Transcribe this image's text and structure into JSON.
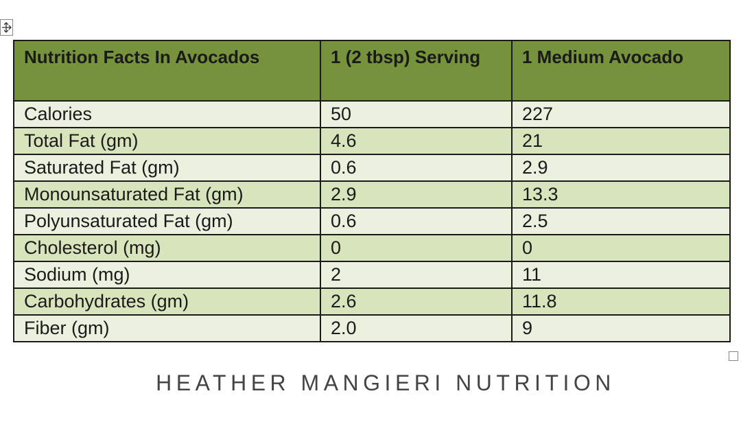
{
  "table": {
    "columns": [
      "Nutrition Facts In Avocados",
      "1 (2 tbsp) Serving",
      "1 Medium Avocado"
    ],
    "rows": [
      [
        "Calories",
        "50",
        "227"
      ],
      [
        "Total Fat (gm)",
        "4.6",
        "21"
      ],
      [
        "Saturated Fat (gm)",
        "0.6",
        "2.9"
      ],
      [
        "Monounsaturated Fat (gm)",
        "2.9",
        "13.3"
      ],
      [
        "Polyunsaturated Fat (gm)",
        "0.6",
        "2.5"
      ],
      [
        "Cholesterol (mg)",
        "0",
        "0"
      ],
      [
        "Sodium (mg)",
        "2",
        "11"
      ],
      [
        "Carbohydrates (gm)",
        "2.6",
        "11.8"
      ],
      [
        "Fiber (gm)",
        "2.0",
        "9"
      ]
    ]
  },
  "footer": "HEATHER MANGIERI NUTRITION"
}
